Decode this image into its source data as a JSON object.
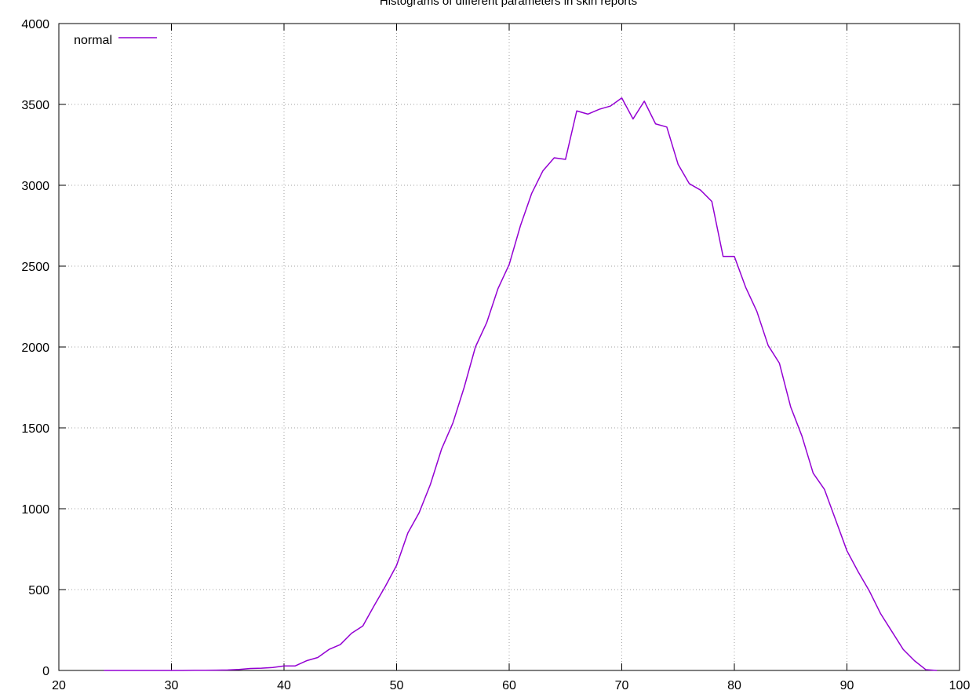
{
  "chart_data": {
    "type": "line",
    "title": "Histograms of different parameters in skin reports",
    "xlabel": "",
    "ylabel": "",
    "xlim": [
      20,
      100
    ],
    "ylim": [
      0,
      4000
    ],
    "xticks": [
      20,
      30,
      40,
      50,
      60,
      70,
      80,
      90,
      100
    ],
    "yticks": [
      0,
      500,
      1000,
      1500,
      2000,
      2500,
      3000,
      3500,
      4000
    ],
    "grid": true,
    "legend_position": "top-left",
    "series": [
      {
        "name": "normal",
        "color": "#9400d3",
        "points": [
          [
            24,
            0
          ],
          [
            25,
            0
          ],
          [
            26,
            0
          ],
          [
            27,
            0
          ],
          [
            28,
            0
          ],
          [
            29,
            0
          ],
          [
            30,
            0
          ],
          [
            31,
            0
          ],
          [
            32,
            1
          ],
          [
            33,
            1
          ],
          [
            34,
            2
          ],
          [
            35,
            3
          ],
          [
            36,
            6
          ],
          [
            37,
            12
          ],
          [
            38,
            14
          ],
          [
            39,
            18
          ],
          [
            40,
            28
          ],
          [
            41,
            28
          ],
          [
            42,
            60
          ],
          [
            43,
            80
          ],
          [
            44,
            130
          ],
          [
            45,
            160
          ],
          [
            46,
            230
          ],
          [
            47,
            275
          ],
          [
            48,
            400
          ],
          [
            49,
            520
          ],
          [
            50,
            650
          ],
          [
            51,
            850
          ],
          [
            52,
            975
          ],
          [
            53,
            1150
          ],
          [
            54,
            1370
          ],
          [
            55,
            1530
          ],
          [
            56,
            1750
          ],
          [
            57,
            2000
          ],
          [
            58,
            2150
          ],
          [
            59,
            2360
          ],
          [
            60,
            2510
          ],
          [
            61,
            2750
          ],
          [
            62,
            2950
          ],
          [
            63,
            3090
          ],
          [
            64,
            3170
          ],
          [
            65,
            3160
          ],
          [
            66,
            3460
          ],
          [
            67,
            3440
          ],
          [
            68,
            3470
          ],
          [
            69,
            3490
          ],
          [
            70,
            3540
          ],
          [
            71,
            3410
          ],
          [
            72,
            3520
          ],
          [
            73,
            3380
          ],
          [
            74,
            3360
          ],
          [
            75,
            3130
          ],
          [
            76,
            3010
          ],
          [
            77,
            2970
          ],
          [
            78,
            2900
          ],
          [
            79,
            2560
          ],
          [
            80,
            2560
          ],
          [
            81,
            2370
          ],
          [
            82,
            2220
          ],
          [
            83,
            2010
          ],
          [
            84,
            1900
          ],
          [
            85,
            1630
          ],
          [
            86,
            1450
          ],
          [
            87,
            1220
          ],
          [
            88,
            1120
          ],
          [
            89,
            930
          ],
          [
            90,
            740
          ],
          [
            91,
            610
          ],
          [
            92,
            490
          ],
          [
            93,
            350
          ],
          [
            94,
            240
          ],
          [
            95,
            130
          ],
          [
            96,
            60
          ],
          [
            97,
            5
          ],
          [
            98,
            0
          ]
        ]
      }
    ]
  }
}
